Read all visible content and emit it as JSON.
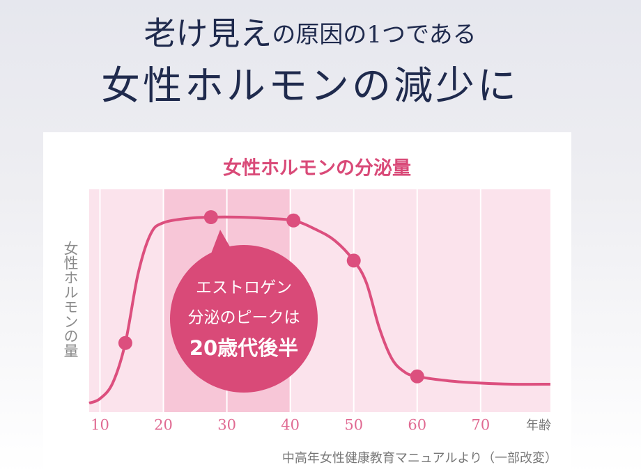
{
  "chart_data": {
    "type": "line",
    "heading": [
      "老け見え",
      "の原因の1つである",
      "女性ホルモンの減少に"
    ],
    "title": "女性ホルモンの分泌量",
    "y_label": "女性ホルモンの量",
    "x_label": "年齢",
    "source": "中高年女性健康教育マニュアルより（一部改変）",
    "callout": [
      "エストロゲン",
      "分泌のピークは",
      "20歳代後半"
    ],
    "xlim": [
      8.3,
      81
    ],
    "xticks": [
      10,
      20,
      30,
      40,
      50,
      60,
      70
    ],
    "ylim": [
      0,
      100
    ],
    "highlight_band": [
      20,
      40
    ],
    "color": "#dc4f7e",
    "series": [
      {
        "x": [
          8.3,
          10,
          12,
          14,
          16,
          18,
          20,
          24,
          27.5,
          32,
          36,
          40.5,
          44,
          47,
          50,
          52,
          54,
          56,
          58,
          60,
          65,
          70,
          75,
          81
        ],
        "values": [
          4,
          6,
          13,
          31,
          62,
          80,
          85,
          87,
          87.5,
          87.5,
          87,
          86,
          82,
          77,
          68,
          58,
          38,
          24,
          18,
          16,
          14,
          13,
          12.5,
          12.5
        ]
      },
      {
        "x": [
          14,
          27.5,
          40.5,
          50,
          60
        ],
        "values": [
          31,
          87.5,
          86,
          68,
          16
        ],
        "markers": true
      }
    ]
  }
}
